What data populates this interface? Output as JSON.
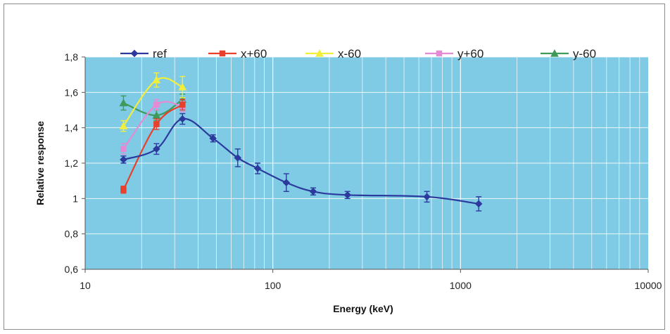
{
  "chart_data": {
    "type": "line",
    "title": "",
    "xlabel": "Energy (keV)",
    "ylabel": "Relative response",
    "x_scale": "log",
    "xlim": [
      10,
      10000
    ],
    "ylim": [
      0.6,
      1.8
    ],
    "x_ticks": [
      10,
      100,
      1000,
      10000
    ],
    "x_tick_labels": [
      "10",
      "100",
      "1000",
      "10000"
    ],
    "y_ticks": [
      0.6,
      0.8,
      1.0,
      1.2,
      1.4,
      1.6,
      1.8
    ],
    "y_tick_labels": [
      "0,6",
      "0,8",
      "1",
      "1,2",
      "1,4",
      "1,6",
      "1,8"
    ],
    "grid": true,
    "legend_position": "top",
    "plot_background": "#7fcbe6",
    "series": [
      {
        "name": "ref",
        "color": "#2b3a9c",
        "marker": "diamond",
        "x": [
          16,
          24,
          33,
          48,
          65,
          83,
          118,
          164,
          250,
          662,
          1250
        ],
        "y": [
          1.22,
          1.28,
          1.45,
          1.34,
          1.23,
          1.17,
          1.09,
          1.04,
          1.02,
          1.01,
          0.97
        ],
        "err": [
          0.02,
          0.03,
          0.03,
          0.02,
          0.05,
          0.03,
          0.05,
          0.02,
          0.02,
          0.03,
          0.04
        ]
      },
      {
        "name": "x+60",
        "color": "#e8402a",
        "marker": "square",
        "x": [
          16,
          24,
          33
        ],
        "y": [
          1.05,
          1.42,
          1.53
        ],
        "err": [
          0.02,
          0.03,
          0.03
        ]
      },
      {
        "name": "x-60",
        "color": "#f2ee3c",
        "marker": "triangle",
        "x": [
          16,
          24,
          33
        ],
        "y": [
          1.41,
          1.67,
          1.63
        ],
        "err": [
          0.03,
          0.04,
          0.06
        ]
      },
      {
        "name": "y+60",
        "color": "#e58ad3",
        "marker": "square",
        "x": [
          16,
          24,
          33
        ],
        "y": [
          1.28,
          1.53,
          1.52
        ],
        "err": [
          0.03,
          0.03,
          0.03
        ]
      },
      {
        "name": "y-60",
        "color": "#3f9a5a",
        "marker": "triangle",
        "x": [
          16,
          24,
          33
        ],
        "y": [
          1.54,
          1.47,
          1.56
        ],
        "err": [
          0.04,
          0.03,
          0.03
        ]
      }
    ]
  }
}
